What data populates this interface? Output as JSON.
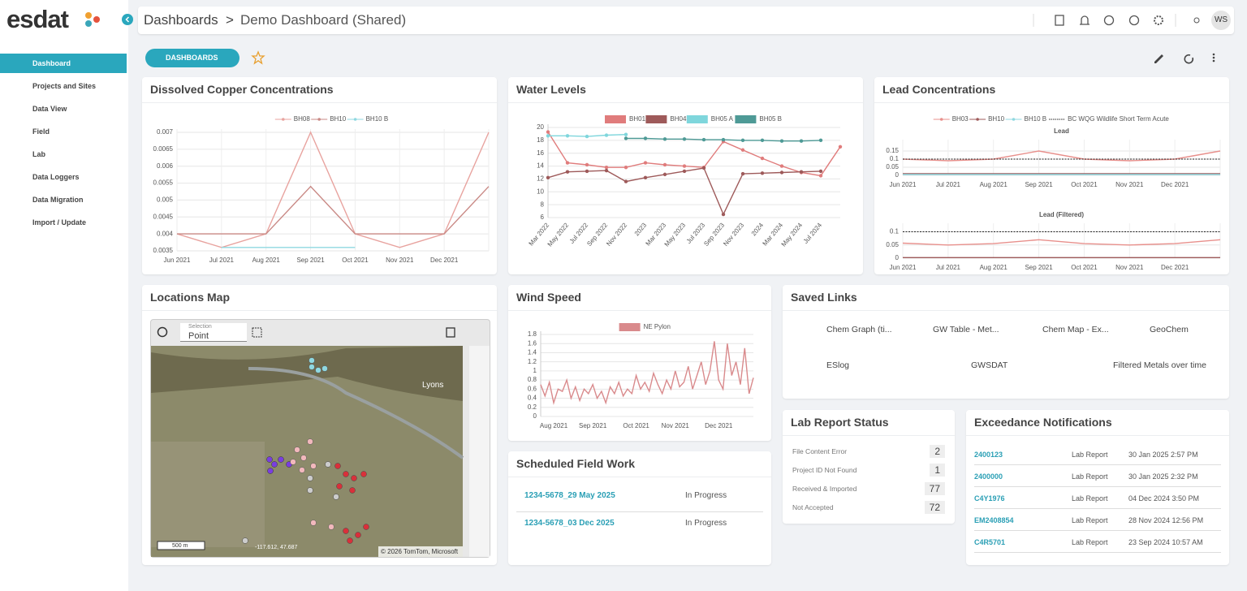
{
  "sidebar": {
    "logo": "esdat",
    "items": [
      {
        "label": "Dashboard",
        "active": true,
        "expandable": false
      },
      {
        "label": "Projects and Sites",
        "active": false,
        "expandable": true
      },
      {
        "label": "Data View",
        "active": false,
        "expandable": false
      },
      {
        "label": "Field",
        "active": false,
        "expandable": true
      },
      {
        "label": "Lab",
        "active": false,
        "expandable": true
      },
      {
        "label": "Data Loggers",
        "active": false,
        "expandable": true
      },
      {
        "label": "Data Migration",
        "active": false,
        "expandable": true
      },
      {
        "label": "Import / Update",
        "active": false,
        "expandable": true
      }
    ]
  },
  "header": {
    "breadcrumb": [
      "Dashboards",
      "Demo Dashboard (Shared)"
    ],
    "separator": ">",
    "user": "WS"
  },
  "toolbar": {
    "button": "DASHBOARDS"
  },
  "chart_data": [
    {
      "type": "line",
      "title": "Dissolved Copper Concentrations",
      "legend": true,
      "legend_style": "line",
      "grid": true,
      "grid_x": true,
      "markers": false,
      "categories": [
        "Jun 2021",
        "Jul 2021",
        "Aug 2021",
        "Sep 2021",
        "Oct 2021",
        "Nov 2021",
        "Dec 2021",
        null
      ],
      "series": [
        {
          "name": "BH08",
          "color": "#e8a39f",
          "values": [
            0.004,
            0.0036,
            0.004,
            0.007,
            0.004,
            0.0036,
            0.004,
            0.007
          ]
        },
        {
          "name": "BH10",
          "color": "#c98985",
          "values": [
            0.004,
            0.004,
            0.004,
            0.0054,
            0.004,
            0.004,
            0.004,
            0.0054
          ]
        },
        {
          "name": "BH10 B",
          "color": "#8fd8e0",
          "values": [
            null,
            0.0036,
            0.0036,
            0.0036,
            0.0036,
            null,
            null,
            null
          ]
        }
      ],
      "ylim": [
        0.0035,
        0.007
      ],
      "yticks": [
        0.0035,
        0.004,
        0.0045,
        0.005,
        0.0055,
        0.006,
        0.0065,
        0.007
      ]
    },
    {
      "type": "line",
      "title": "Water Levels",
      "legend": true,
      "legend_style": "box",
      "grid": true,
      "grid_x": false,
      "markers": true,
      "categories": [
        "Mar 2022",
        "May 2022",
        "Jul 2022",
        "Sep 2022",
        "Nov 2022",
        "2023",
        "Mar 2023",
        "May 2023",
        "Jul 2023",
        "Sep 2023",
        "Nov 2023",
        "2024",
        "Mar 2024",
        "May 2024",
        "Jul 2024",
        null
      ],
      "series": [
        {
          "name": "BH01",
          "color": "#e07c7c",
          "values": [
            19.3,
            14.5,
            14.2,
            13.8,
            13.8,
            14.5,
            14.2,
            14.0,
            13.8,
            17.8,
            16.5,
            15.2,
            14.0,
            13.0,
            12.5,
            17.0
          ]
        },
        {
          "name": "BH04",
          "color": "#9e5a5a",
          "values": [
            12.2,
            13.1,
            13.2,
            13.3,
            11.6,
            12.2,
            12.7,
            13.2,
            13.7,
            6.5,
            12.8,
            12.9,
            13.0,
            13.1,
            13.2,
            null
          ]
        },
        {
          "name": "BH05 A",
          "color": "#7fd6dc",
          "values": [
            18.7,
            18.7,
            18.6,
            18.8,
            18.9,
            null,
            null,
            null,
            null,
            null,
            null,
            null,
            null,
            null,
            null,
            null
          ]
        },
        {
          "name": "BH05 B",
          "color": "#4e9a96",
          "values": [
            null,
            null,
            null,
            null,
            18.3,
            18.3,
            18.2,
            18.2,
            18.1,
            18.1,
            18.0,
            18.0,
            17.9,
            17.9,
            18.0,
            null
          ]
        }
      ],
      "ylim": [
        6,
        20
      ],
      "yticks": [
        6,
        8,
        10,
        12,
        14,
        16,
        18,
        20
      ]
    },
    {
      "type": "line",
      "title": "Lead Concentrations",
      "subtitle": "Lead",
      "legend": true,
      "legend_style": "line",
      "grid": true,
      "grid_x": true,
      "markers": false,
      "categories": [
        "Jun 2021",
        "Jul 2021",
        "Aug 2021",
        "Sep 2021",
        "Oct 2021",
        "Nov 2021",
        "Dec 2021",
        null
      ],
      "series": [
        {
          "name": "BH03",
          "color": "#e8908c",
          "values": [
            0.1,
            0.09,
            0.1,
            0.15,
            0.1,
            0.09,
            0.1,
            0.15
          ]
        },
        {
          "name": "BH10",
          "color": "#9e5a5a",
          "values": [
            0.01,
            0.01,
            0.01,
            0.01,
            0.01,
            0.01,
            0.01,
            0.01
          ]
        },
        {
          "name": "BH10 B",
          "color": "#8fd8e0",
          "values": [
            0.005,
            0.005,
            0.005,
            0.005,
            0.005,
            0.005,
            0.005,
            0.005
          ]
        },
        {
          "name": "BC WQG Wildlife Short Term Acute",
          "color": "#222222",
          "dash": true,
          "values": [
            0.1,
            0.1,
            0.1,
            0.1,
            0.1,
            0.1,
            0.1,
            0.1
          ]
        }
      ],
      "ylim": [
        0,
        0.2
      ],
      "yticks": [
        0,
        0.05,
        0.1,
        0.15
      ]
    },
    {
      "type": "line",
      "subtitle": "Lead (Filtered)",
      "legend": false,
      "grid": true,
      "grid_x": true,
      "markers": false,
      "categories": [
        "Jun 2021",
        "Jul 2021",
        "Aug 2021",
        "Sep 2021",
        "Oct 2021",
        "Nov 2021",
        "Dec 2021",
        null
      ],
      "series": [
        {
          "color": "#e8908c",
          "values": [
            0.057,
            0.05,
            0.055,
            0.07,
            0.055,
            0.05,
            0.055,
            0.07
          ]
        },
        {
          "color": "#9e5a5a",
          "values": [
            0.002,
            0.002,
            0.002,
            0.002,
            0.002,
            0.002,
            0.002,
            0.002
          ]
        },
        {
          "color": "#222222",
          "dash": true,
          "values": [
            0.1,
            0.1,
            0.1,
            0.1,
            0.1,
            0.1,
            0.1,
            0.1
          ]
        }
      ],
      "ylim": [
        0,
        0.12
      ],
      "yticks": [
        0,
        0.05,
        0.1
      ]
    },
    {
      "type": "line",
      "title": "Wind Speed",
      "legend": true,
      "legend_style": "box",
      "grid": true,
      "grid_x": false,
      "markers": false,
      "categories": [
        null,
        null,
        null,
        "Aug 2021",
        null,
        null,
        null,
        null,
        null,
        null,
        null,
        null,
        "Sep 2021",
        null,
        null,
        null,
        null,
        null,
        null,
        null,
        null,
        null,
        "Oct 2021",
        null,
        null,
        null,
        null,
        null,
        null,
        null,
        null,
        "Nov 2021",
        null,
        null,
        null,
        null,
        null,
        null,
        null,
        null,
        null,
        "Dec 2021",
        null,
        null,
        null,
        null,
        null,
        null,
        null,
        null
      ],
      "series": [
        {
          "name": "NE Pylon",
          "color": "#d98a8c",
          "values": [
            0.7,
            0.45,
            0.75,
            0.3,
            0.6,
            0.55,
            0.8,
            0.4,
            0.65,
            0.35,
            0.6,
            0.5,
            0.7,
            0.4,
            0.55,
            0.3,
            0.65,
            0.5,
            0.75,
            0.45,
            0.6,
            0.5,
            0.9,
            0.6,
            0.75,
            0.55,
            0.95,
            0.7,
            0.5,
            0.8,
            0.6,
            1.0,
            0.65,
            0.75,
            1.1,
            0.6,
            0.9,
            1.2,
            0.7,
            1.0,
            1.65,
            0.8,
            0.6,
            1.6,
            0.9,
            1.2,
            0.7,
            1.5,
            0.5,
            0.85
          ]
        }
      ],
      "ylim": [
        0,
        1.8
      ],
      "yticks": [
        0,
        0.2,
        0.4,
        0.6,
        0.8,
        1,
        1.2,
        1.4,
        1.6,
        1.8
      ]
    }
  ],
  "map": {
    "title": "Locations Map",
    "selection_label": "Selection",
    "selection_value": "Point",
    "place": "Lyons",
    "scale": "500 m",
    "coords": "-117.612, 47.687",
    "attribution": "© 2026 TomTom, Microsoft"
  },
  "saved_links": {
    "title": "Saved Links",
    "items": [
      "Chem Graph (ti...",
      "GW Table - Met...",
      "Chem Map - Ex...",
      "GeoChem",
      "ESlog",
      "GWSDAT",
      "Filtered Metals over time"
    ]
  },
  "lab_report_status": {
    "title": "Lab Report Status",
    "rows": [
      {
        "label": "File Content Error",
        "count": "2"
      },
      {
        "label": "Project ID Not Found",
        "count": "1"
      },
      {
        "label": "Received & Imported",
        "count": "77"
      },
      {
        "label": "Not Accepted",
        "count": "72"
      }
    ]
  },
  "scheduled_field_work": {
    "title": "Scheduled Field Work",
    "rows": [
      {
        "id": "1234-5678_29 May 2025",
        "status": "In Progress"
      },
      {
        "id": "1234-5678_03 Dec 2025",
        "status": "In Progress"
      }
    ]
  },
  "exceedance_notifications": {
    "title": "Exceedance Notifications",
    "rows": [
      {
        "id": "2400123",
        "type": "Lab Report",
        "date": "30 Jan 2025 2:57 PM"
      },
      {
        "id": "2400000",
        "type": "Lab Report",
        "date": "30 Jan 2025 2:32 PM"
      },
      {
        "id": "C4Y1976",
        "type": "Lab Report",
        "date": "04 Dec 2024 3:50 PM"
      },
      {
        "id": "EM2408854",
        "type": "Lab Report",
        "date": "28 Nov 2024 12:56 PM"
      },
      {
        "id": "C4R5701",
        "type": "Lab Report",
        "date": "23 Sep 2024 10:57 AM"
      }
    ]
  }
}
